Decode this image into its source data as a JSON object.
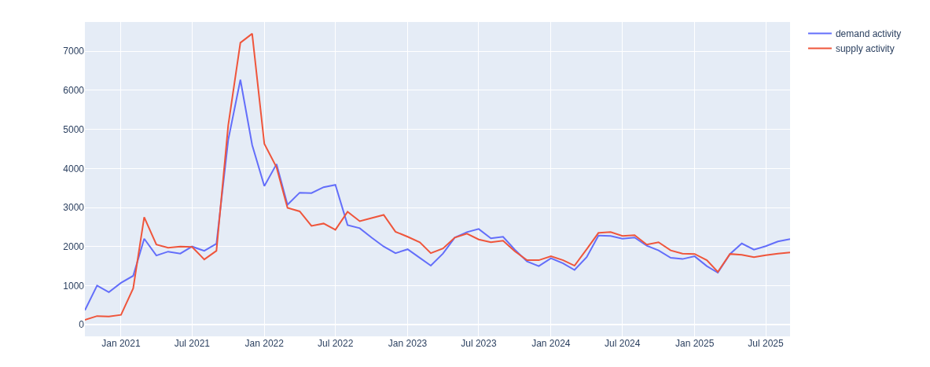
{
  "chart_data": {
    "type": "line",
    "x": [
      "2020-10",
      "2020-11",
      "2020-12",
      "2021-01",
      "2021-02",
      "2021-03",
      "2021-04",
      "2021-05",
      "2021-06",
      "2021-07",
      "2021-08",
      "2021-09",
      "2021-10",
      "2021-11",
      "2021-12",
      "2022-01",
      "2022-02",
      "2022-03",
      "2022-04",
      "2022-05",
      "2022-06",
      "2022-07",
      "2022-08",
      "2022-09",
      "2022-10",
      "2022-11",
      "2022-12",
      "2023-01",
      "2023-02",
      "2023-03",
      "2023-04",
      "2023-05",
      "2023-06",
      "2023-07",
      "2023-08",
      "2023-09",
      "2023-10",
      "2023-11",
      "2023-12",
      "2024-01",
      "2024-02",
      "2024-03",
      "2024-04",
      "2024-05",
      "2024-06",
      "2024-07",
      "2024-08",
      "2024-09",
      "2024-10",
      "2024-11",
      "2024-12",
      "2025-01",
      "2025-02",
      "2025-03",
      "2025-04",
      "2025-05",
      "2025-06",
      "2025-07",
      "2025-08",
      "2025-09"
    ],
    "series": [
      {
        "name": "demand activity",
        "color": "#636efa",
        "values": [
          370,
          1000,
          830,
          1070,
          1250,
          2200,
          1770,
          1870,
          1820,
          2000,
          1890,
          2070,
          4730,
          6270,
          4600,
          3550,
          4110,
          3070,
          3380,
          3370,
          3520,
          3580,
          2550,
          2470,
          2230,
          2000,
          1830,
          1930,
          1710,
          1510,
          1820,
          2230,
          2370,
          2450,
          2210,
          2250,
          1920,
          1620,
          1500,
          1700,
          1570,
          1400,
          1730,
          2280,
          2270,
          2200,
          2230,
          2020,
          1900,
          1710,
          1680,
          1750,
          1500,
          1330,
          1810,
          2080,
          1920,
          2010,
          2130,
          2190
        ]
      },
      {
        "name": "supply activity",
        "color": "#ef553b",
        "values": [
          120,
          220,
          210,
          250,
          930,
          2750,
          2050,
          1970,
          2000,
          1990,
          1670,
          1890,
          5100,
          7220,
          7450,
          4630,
          4030,
          2990,
          2900,
          2530,
          2590,
          2430,
          2890,
          2650,
          2730,
          2810,
          2380,
          2250,
          2110,
          1830,
          1950,
          2230,
          2330,
          2180,
          2110,
          2150,
          1880,
          1650,
          1650,
          1750,
          1650,
          1510,
          1930,
          2350,
          2370,
          2270,
          2290,
          2050,
          2110,
          1900,
          1820,
          1810,
          1650,
          1350,
          1810,
          1790,
          1730,
          1780,
          1820,
          1850
        ]
      }
    ],
    "xlim": [
      "2020-10-01",
      "2025-09-01"
    ],
    "xticks": [
      {
        "value": "2021-01-01",
        "label": "Jan 2021"
      },
      {
        "value": "2021-07-01",
        "label": "Jul 2021"
      },
      {
        "value": "2022-01-01",
        "label": "Jan 2022"
      },
      {
        "value": "2022-07-01",
        "label": "Jul 2022"
      },
      {
        "value": "2023-01-01",
        "label": "Jan 2023"
      },
      {
        "value": "2023-07-01",
        "label": "Jul 2023"
      },
      {
        "value": "2024-01-01",
        "label": "Jan 2024"
      },
      {
        "value": "2024-07-01",
        "label": "Jul 2024"
      },
      {
        "value": "2025-01-01",
        "label": "Jan 2025"
      },
      {
        "value": "2025-07-01",
        "label": "Jul 2025"
      }
    ],
    "ylim": [
      -300,
      7750
    ],
    "yticks": [
      0,
      1000,
      2000,
      3000,
      4000,
      5000,
      6000,
      7000
    ],
    "grid": true,
    "legend": "top right",
    "line_style": "solid"
  }
}
